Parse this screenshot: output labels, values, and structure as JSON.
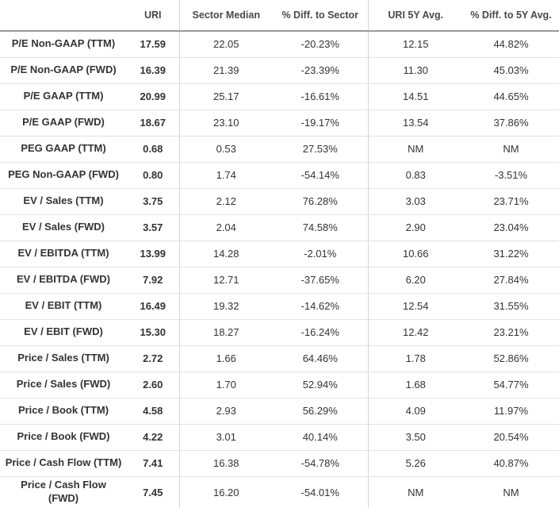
{
  "colors": {
    "background": "#ffffff",
    "text": "#333333",
    "header_text": "#484848",
    "header_border": "#9a9a9a",
    "row_border": "#e2e2e2",
    "column_divider": "#d5d5d5"
  },
  "table": {
    "columns": [
      {
        "key": "metric",
        "label": ""
      },
      {
        "key": "uri",
        "label": "URI"
      },
      {
        "key": "sector_median",
        "label": "Sector Median"
      },
      {
        "key": "diff_sector",
        "label": "% Diff. to Sector"
      },
      {
        "key": "uri_5y",
        "label": "URI 5Y Avg."
      },
      {
        "key": "diff_5y",
        "label": "% Diff. to 5Y Avg."
      }
    ],
    "rows": [
      {
        "metric": "P/E Non-GAAP (TTM)",
        "uri": "17.59",
        "sector_median": "22.05",
        "diff_sector": "-20.23%",
        "uri_5y": "12.15",
        "diff_5y": "44.82%"
      },
      {
        "metric": "P/E Non-GAAP (FWD)",
        "uri": "16.39",
        "sector_median": "21.39",
        "diff_sector": "-23.39%",
        "uri_5y": "11.30",
        "diff_5y": "45.03%"
      },
      {
        "metric": "P/E GAAP (TTM)",
        "uri": "20.99",
        "sector_median": "25.17",
        "diff_sector": "-16.61%",
        "uri_5y": "14.51",
        "diff_5y": "44.65%"
      },
      {
        "metric": "P/E GAAP (FWD)",
        "uri": "18.67",
        "sector_median": "23.10",
        "diff_sector": "-19.17%",
        "uri_5y": "13.54",
        "diff_5y": "37.86%"
      },
      {
        "metric": "PEG GAAP (TTM)",
        "uri": "0.68",
        "sector_median": "0.53",
        "diff_sector": "27.53%",
        "uri_5y": "NM",
        "diff_5y": "NM"
      },
      {
        "metric": "PEG Non-GAAP (FWD)",
        "uri": "0.80",
        "sector_median": "1.74",
        "diff_sector": "-54.14%",
        "uri_5y": "0.83",
        "diff_5y": "-3.51%"
      },
      {
        "metric": "EV / Sales (TTM)",
        "uri": "3.75",
        "sector_median": "2.12",
        "diff_sector": "76.28%",
        "uri_5y": "3.03",
        "diff_5y": "23.71%"
      },
      {
        "metric": "EV / Sales (FWD)",
        "uri": "3.57",
        "sector_median": "2.04",
        "diff_sector": "74.58%",
        "uri_5y": "2.90",
        "diff_5y": "23.04%"
      },
      {
        "metric": "EV / EBITDA (TTM)",
        "uri": "13.99",
        "sector_median": "14.28",
        "diff_sector": "-2.01%",
        "uri_5y": "10.66",
        "diff_5y": "31.22%"
      },
      {
        "metric": "EV / EBITDA (FWD)",
        "uri": "7.92",
        "sector_median": "12.71",
        "diff_sector": "-37.65%",
        "uri_5y": "6.20",
        "diff_5y": "27.84%"
      },
      {
        "metric": "EV / EBIT (TTM)",
        "uri": "16.49",
        "sector_median": "19.32",
        "diff_sector": "-14.62%",
        "uri_5y": "12.54",
        "diff_5y": "31.55%"
      },
      {
        "metric": "EV / EBIT (FWD)",
        "uri": "15.30",
        "sector_median": "18.27",
        "diff_sector": "-16.24%",
        "uri_5y": "12.42",
        "diff_5y": "23.21%"
      },
      {
        "metric": "Price / Sales (TTM)",
        "uri": "2.72",
        "sector_median": "1.66",
        "diff_sector": "64.46%",
        "uri_5y": "1.78",
        "diff_5y": "52.86%"
      },
      {
        "metric": "Price / Sales (FWD)",
        "uri": "2.60",
        "sector_median": "1.70",
        "diff_sector": "52.94%",
        "uri_5y": "1.68",
        "diff_5y": "54.77%"
      },
      {
        "metric": "Price / Book (TTM)",
        "uri": "4.58",
        "sector_median": "2.93",
        "diff_sector": "56.29%",
        "uri_5y": "4.09",
        "diff_5y": "11.97%"
      },
      {
        "metric": "Price / Book (FWD)",
        "uri": "4.22",
        "sector_median": "3.01",
        "diff_sector": "40.14%",
        "uri_5y": "3.50",
        "diff_5y": "20.54%"
      },
      {
        "metric": "Price / Cash Flow (TTM)",
        "uri": "7.41",
        "sector_median": "16.38",
        "diff_sector": "-54.78%",
        "uri_5y": "5.26",
        "diff_5y": "40.87%"
      },
      {
        "metric": "Price / Cash Flow\n(FWD)",
        "uri": "7.45",
        "sector_median": "16.20",
        "diff_sector": "-54.01%",
        "uri_5y": "NM",
        "diff_5y": "NM"
      }
    ]
  }
}
